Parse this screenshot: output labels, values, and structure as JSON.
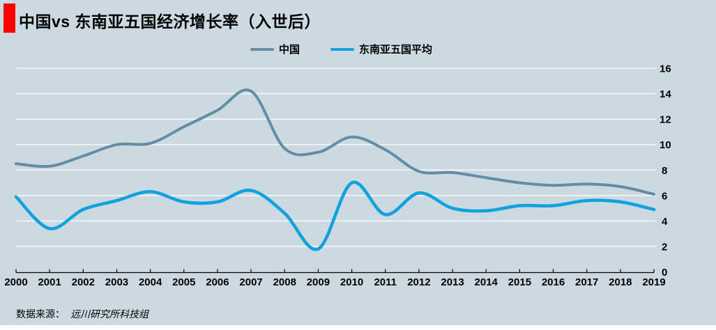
{
  "title": "中国vs 东南亚五国经济增长率（入世后）",
  "source": {
    "prefix": "数据来源：",
    "name": "远川研究所科技组"
  },
  "colors": {
    "background": "#cdd9e0",
    "china_line": "#628da5",
    "sea_line": "#10a2de",
    "accent_red": "#fe0000",
    "gridline": "#f3f7f8",
    "axis": "#000000",
    "text": "#000000"
  },
  "legend": [
    {
      "label": "中国",
      "series": "china"
    },
    {
      "label": "东南亚五国平均",
      "series": "sea"
    }
  ],
  "chart_data": {
    "type": "line",
    "title": "中国vs 东南亚五国经济增长率（入世后）",
    "x": [
      "2000",
      "2001",
      "2002",
      "2003",
      "2004",
      "2005",
      "2006",
      "2007",
      "2008",
      "2009",
      "2010",
      "2011",
      "2012",
      "2013",
      "2014",
      "2015",
      "2016",
      "2017",
      "2018",
      "2019"
    ],
    "series": [
      {
        "name": "中国",
        "color": "#628da5",
        "values": [
          8.5,
          8.3,
          9.1,
          10.0,
          10.1,
          11.4,
          12.7,
          14.2,
          9.7,
          9.4,
          10.6,
          9.6,
          7.9,
          7.8,
          7.4,
          7.0,
          6.8,
          6.9,
          6.7,
          6.1
        ]
      },
      {
        "name": "东南亚五国平均",
        "color": "#10a2de",
        "values": [
          5.9,
          3.4,
          4.9,
          5.6,
          6.3,
          5.5,
          5.5,
          6.4,
          4.6,
          1.8,
          7.0,
          4.5,
          6.2,
          5.0,
          4.8,
          5.2,
          5.2,
          5.6,
          5.5,
          4.9
        ]
      }
    ],
    "xlabel": "",
    "ylabel": "",
    "ylim": [
      0,
      16
    ],
    "yticks": [
      0,
      2,
      4,
      6,
      8,
      10,
      12,
      14,
      16
    ],
    "grid": true,
    "smooth": true,
    "legend_position": "top-center"
  }
}
